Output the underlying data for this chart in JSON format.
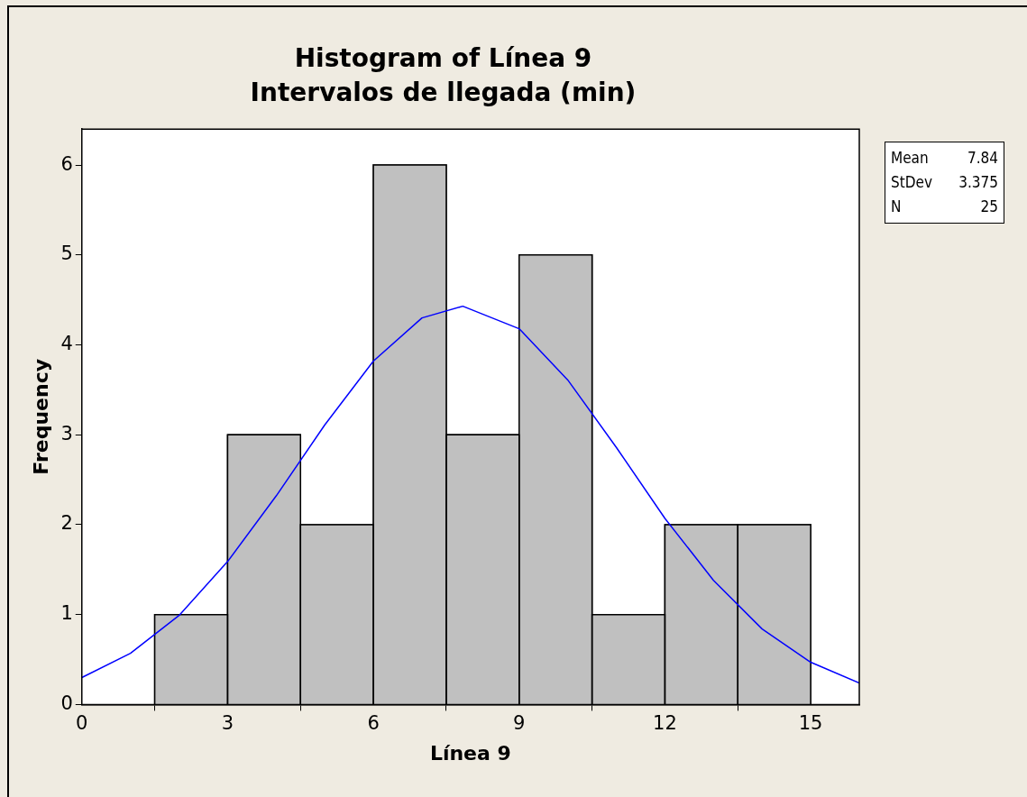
{
  "chart_data": {
    "type": "histogram",
    "title": "Histogram of Línea 9",
    "subtitle": "Intervalos de llegada (min)",
    "xlabel": "Línea 9",
    "ylabel": "Frequency",
    "bins": [
      1.5,
      3,
      4.5,
      6,
      7.5,
      9,
      10.5,
      12,
      13.5,
      15
    ],
    "values": [
      1,
      3,
      2,
      6,
      3,
      5,
      1,
      2,
      2
    ],
    "color": "#c0c0c0",
    "series": [
      {
        "type": "line",
        "color": "#0000ff",
        "x": [
          0,
          1,
          2,
          3,
          4,
          5,
          6,
          7,
          7.84,
          9,
          10,
          11,
          12,
          13,
          14,
          15,
          16
        ],
        "values": [
          0.3,
          0.57,
          0.99,
          1.59,
          2.32,
          3.11,
          3.82,
          4.3,
          4.43,
          4.18,
          3.61,
          2.86,
          2.07,
          1.38,
          0.84,
          0.47,
          0.24
        ]
      }
    ],
    "xlim": [
      0,
      16
    ],
    "xticks": [
      0,
      3,
      6,
      9,
      12,
      15
    ],
    "ylim": [
      0,
      6.4
    ],
    "yticks": [
      0,
      1,
      2,
      3,
      4,
      5,
      6
    ],
    "marker": "none",
    "line_style": "solid",
    "annotations": [
      "Mean 7.84",
      "StDev 3.375",
      "N 25"
    ]
  }
}
